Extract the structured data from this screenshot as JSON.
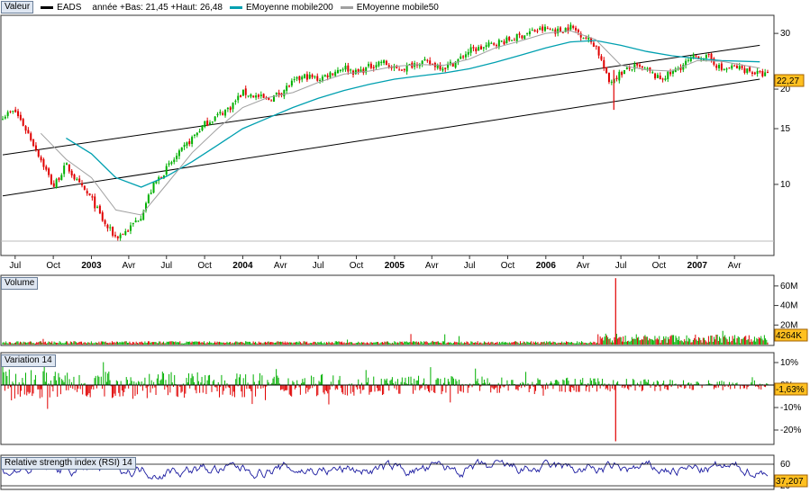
{
  "legend": {
    "value_label": "Valeur",
    "ticker": "EADS",
    "ticker_info": "année +Bas: 21,45 +Haut: 26,48",
    "ma200": "EMoyenne mobile200",
    "ma50": "EMoyenne mobile50"
  },
  "colors": {
    "ma200": "#00a0b0",
    "ma50": "#a0a0a0",
    "up": "#00b000",
    "down": "#e00000",
    "rsi": "#1a1aa0",
    "label_bg": "#ffc020"
  },
  "panels": {
    "volume": "Volume",
    "variation": "Variation 14",
    "rsi": "Relative strength index (RSI) 14"
  },
  "current": {
    "price": "22,27",
    "volume": "4264K",
    "variation": "-1,63%",
    "rsi": "37,207"
  },
  "chart_data": {
    "type": "line",
    "title": "EADS",
    "x_tick_labels": [
      "Jul",
      "Oct",
      "2003",
      "Avr",
      "Jul",
      "Oct",
      "2004",
      "Avr",
      "Jul",
      "Oct",
      "2005",
      "Avr",
      "Jul",
      "Oct",
      "2006",
      "Avr",
      "Jul",
      "Oct",
      "2007",
      "Avr"
    ],
    "x_range": [
      "2002-07",
      "2007-06"
    ],
    "y_ticks": [
      10,
      15,
      20,
      30
    ],
    "ylim": [
      6,
      34
    ],
    "y_scale": "log",
    "price_series": [
      {
        "date": "2002-06",
        "value": 16.5
      },
      {
        "date": "2002-07",
        "value": 17.0
      },
      {
        "date": "2002-08",
        "value": 14.5
      },
      {
        "date": "2002-09",
        "value": 12.0
      },
      {
        "date": "2002-10",
        "value": 9.8
      },
      {
        "date": "2002-11",
        "value": 11.5
      },
      {
        "date": "2002-12",
        "value": 10.0
      },
      {
        "date": "2003-01",
        "value": 9.0
      },
      {
        "date": "2003-02",
        "value": 7.5
      },
      {
        "date": "2003-03",
        "value": 6.8
      },
      {
        "date": "2003-04",
        "value": 7.2
      },
      {
        "date": "2003-05",
        "value": 8.0
      },
      {
        "date": "2003-06",
        "value": 10.0
      },
      {
        "date": "2003-07",
        "value": 11.2
      },
      {
        "date": "2003-08",
        "value": 12.5
      },
      {
        "date": "2003-09",
        "value": 14.0
      },
      {
        "date": "2003-10",
        "value": 15.5
      },
      {
        "date": "2003-11",
        "value": 16.5
      },
      {
        "date": "2003-12",
        "value": 17.5
      },
      {
        "date": "2004-01",
        "value": 19.5
      },
      {
        "date": "2004-02",
        "value": 19.0
      },
      {
        "date": "2004-03",
        "value": 18.5
      },
      {
        "date": "2004-04",
        "value": 19.5
      },
      {
        "date": "2004-05",
        "value": 21.0
      },
      {
        "date": "2004-06",
        "value": 22.0
      },
      {
        "date": "2004-07",
        "value": 21.5
      },
      {
        "date": "2004-08",
        "value": 22.5
      },
      {
        "date": "2004-09",
        "value": 23.5
      },
      {
        "date": "2004-10",
        "value": 22.5
      },
      {
        "date": "2004-11",
        "value": 23.5
      },
      {
        "date": "2004-12",
        "value": 24.5
      },
      {
        "date": "2005-01",
        "value": 23.0
      },
      {
        "date": "2005-02",
        "value": 23.5
      },
      {
        "date": "2005-03",
        "value": 24.5
      },
      {
        "date": "2005-04",
        "value": 24.0
      },
      {
        "date": "2005-05",
        "value": 23.5
      },
      {
        "date": "2005-06",
        "value": 24.5
      },
      {
        "date": "2005-07",
        "value": 26.5
      },
      {
        "date": "2005-08",
        "value": 27.0
      },
      {
        "date": "2005-09",
        "value": 28.0
      },
      {
        "date": "2005-10",
        "value": 28.5
      },
      {
        "date": "2005-11",
        "value": 29.5
      },
      {
        "date": "2005-12",
        "value": 30.5
      },
      {
        "date": "2006-01",
        "value": 31.0
      },
      {
        "date": "2006-02",
        "value": 30.5
      },
      {
        "date": "2006-03",
        "value": 31.5
      },
      {
        "date": "2006-04",
        "value": 29.5
      },
      {
        "date": "2006-05",
        "value": 27.5
      },
      {
        "date": "2006-06",
        "value": 21.0
      },
      {
        "date": "2006-07",
        "value": 22.5
      },
      {
        "date": "2006-08",
        "value": 23.5
      },
      {
        "date": "2006-09",
        "value": 23.0
      },
      {
        "date": "2006-10",
        "value": 21.5
      },
      {
        "date": "2006-11",
        "value": 22.5
      },
      {
        "date": "2006-12",
        "value": 24.0
      },
      {
        "date": "2007-01",
        "value": 25.5
      },
      {
        "date": "2007-02",
        "value": 25.0
      },
      {
        "date": "2007-03",
        "value": 23.0
      },
      {
        "date": "2007-04",
        "value": 23.5
      },
      {
        "date": "2007-05",
        "value": 23.0
      },
      {
        "date": "2007-06",
        "value": 22.27
      }
    ],
    "ma200_series": [
      {
        "date": "2002-11",
        "value": 14.0
      },
      {
        "date": "2003-01",
        "value": 12.5
      },
      {
        "date": "2003-03",
        "value": 10.5
      },
      {
        "date": "2003-05",
        "value": 9.8
      },
      {
        "date": "2003-07",
        "value": 10.6
      },
      {
        "date": "2003-09",
        "value": 11.8
      },
      {
        "date": "2003-11",
        "value": 13.3
      },
      {
        "date": "2004-01",
        "value": 15.0
      },
      {
        "date": "2004-03",
        "value": 16.2
      },
      {
        "date": "2004-05",
        "value": 17.5
      },
      {
        "date": "2004-07",
        "value": 18.7
      },
      {
        "date": "2004-09",
        "value": 19.8
      },
      {
        "date": "2004-11",
        "value": 20.7
      },
      {
        "date": "2005-01",
        "value": 21.5
      },
      {
        "date": "2005-03",
        "value": 22.0
      },
      {
        "date": "2005-05",
        "value": 22.5
      },
      {
        "date": "2005-07",
        "value": 23.2
      },
      {
        "date": "2005-09",
        "value": 24.3
      },
      {
        "date": "2005-11",
        "value": 25.6
      },
      {
        "date": "2006-01",
        "value": 27.0
      },
      {
        "date": "2006-03",
        "value": 28.2
      },
      {
        "date": "2006-05",
        "value": 28.5
      },
      {
        "date": "2006-07",
        "value": 27.5
      },
      {
        "date": "2006-09",
        "value": 26.3
      },
      {
        "date": "2006-11",
        "value": 25.5
      },
      {
        "date": "2007-01",
        "value": 25.0
      },
      {
        "date": "2007-03",
        "value": 24.6
      },
      {
        "date": "2007-06",
        "value": 24.4
      }
    ],
    "ma50_series": [
      {
        "date": "2002-09",
        "value": 14.5
      },
      {
        "date": "2002-11",
        "value": 12.0
      },
      {
        "date": "2003-01",
        "value": 10.5
      },
      {
        "date": "2003-03",
        "value": 8.3
      },
      {
        "date": "2003-05",
        "value": 8.0
      },
      {
        "date": "2003-07",
        "value": 10.0
      },
      {
        "date": "2003-09",
        "value": 12.6
      },
      {
        "date": "2003-11",
        "value": 15.0
      },
      {
        "date": "2004-01",
        "value": 17.5
      },
      {
        "date": "2004-03",
        "value": 18.8
      },
      {
        "date": "2004-05",
        "value": 19.5
      },
      {
        "date": "2004-07",
        "value": 21.0
      },
      {
        "date": "2004-09",
        "value": 22.3
      },
      {
        "date": "2004-11",
        "value": 22.8
      },
      {
        "date": "2005-01",
        "value": 23.6
      },
      {
        "date": "2005-03",
        "value": 23.9
      },
      {
        "date": "2005-05",
        "value": 23.8
      },
      {
        "date": "2005-07",
        "value": 24.9
      },
      {
        "date": "2005-09",
        "value": 27.0
      },
      {
        "date": "2005-11",
        "value": 28.4
      },
      {
        "date": "2006-01",
        "value": 30.0
      },
      {
        "date": "2006-03",
        "value": 30.6
      },
      {
        "date": "2006-05",
        "value": 28.7
      },
      {
        "date": "2006-07",
        "value": 23.8
      },
      {
        "date": "2006-09",
        "value": 23.0
      },
      {
        "date": "2006-11",
        "value": 22.8
      },
      {
        "date": "2007-01",
        "value": 24.6
      },
      {
        "date": "2007-03",
        "value": 24.5
      },
      {
        "date": "2007-06",
        "value": 23.3
      }
    ],
    "trendlines": [
      {
        "name": "upper",
        "start": {
          "date": "2002-06",
          "value": 12.4
        },
        "end": {
          "date": "2007-06",
          "value": 27.5
        }
      },
      {
        "name": "lower",
        "start": {
          "date": "2002-06",
          "value": 9.2
        },
        "end": {
          "date": "2007-06",
          "value": 21.5
        }
      }
    ],
    "volume": {
      "y_ticks_labels": [
        "60M",
        "40M",
        "20M"
      ],
      "y_ticks": [
        60,
        40,
        20
      ],
      "ylim": [
        0,
        70
      ],
      "unit": "M",
      "spike": {
        "date": "2006-06",
        "value": 68
      }
    },
    "variation": {
      "y_ticks_labels": [
        "10%",
        "0%",
        "-10%",
        "-20%"
      ],
      "y_ticks": [
        10,
        0,
        -10,
        -20
      ],
      "ylim": [
        -26,
        14
      ],
      "spike": {
        "date": "2006-06",
        "value": -25
      }
    },
    "rsi": {
      "y_ticks_labels": [
        "60",
        "20"
      ],
      "y_ticks": [
        60,
        20
      ],
      "ylim": [
        15,
        75
      ]
    }
  }
}
